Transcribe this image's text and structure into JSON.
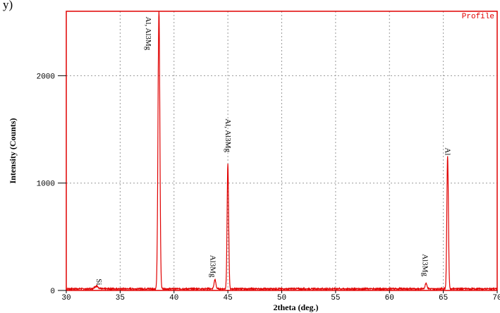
{
  "header": {
    "caption_fragment": "y)"
  },
  "chart_data": {
    "type": "line",
    "title": "",
    "legend_label": "Profile",
    "xlabel": "2theta (deg.)",
    "ylabel": "Intensity (Counts)",
    "xlim": [
      30,
      70
    ],
    "ylim": [
      0,
      2600
    ],
    "x_ticks": [
      30,
      35,
      40,
      45,
      50,
      55,
      60,
      65,
      70
    ],
    "y_ticks": [
      0,
      1000,
      2000
    ],
    "grid": true,
    "colors": {
      "line": "#e00000",
      "frame": "#e00000",
      "grid": "#999999"
    },
    "series": [
      {
        "baseline": 15,
        "peaks": [
          {
            "x": 32.8,
            "height": 25,
            "width": 0.25
          },
          {
            "x": 38.6,
            "height": 2600,
            "width": 0.12
          },
          {
            "x": 43.8,
            "height": 85,
            "width": 0.12
          },
          {
            "x": 45.0,
            "height": 1160,
            "width": 0.1
          },
          {
            "x": 63.4,
            "height": 55,
            "width": 0.12
          },
          {
            "x": 65.4,
            "height": 1240,
            "width": 0.1
          }
        ]
      }
    ],
    "annotations": [
      {
        "label": "Si",
        "x": 32.8,
        "y": 110
      },
      {
        "label": "Al, Al3Mg",
        "x": 37.4,
        "y": 2550
      },
      {
        "label": "Al3Mg",
        "x": 43.4,
        "y": 330
      },
      {
        "label": "Al, Al3Mg",
        "x": 44.8,
        "y": 1600
      },
      {
        "label": "Al3Mg",
        "x": 63.1,
        "y": 340
      },
      {
        "label": "Al",
        "x": 65.2,
        "y": 1330
      }
    ]
  }
}
